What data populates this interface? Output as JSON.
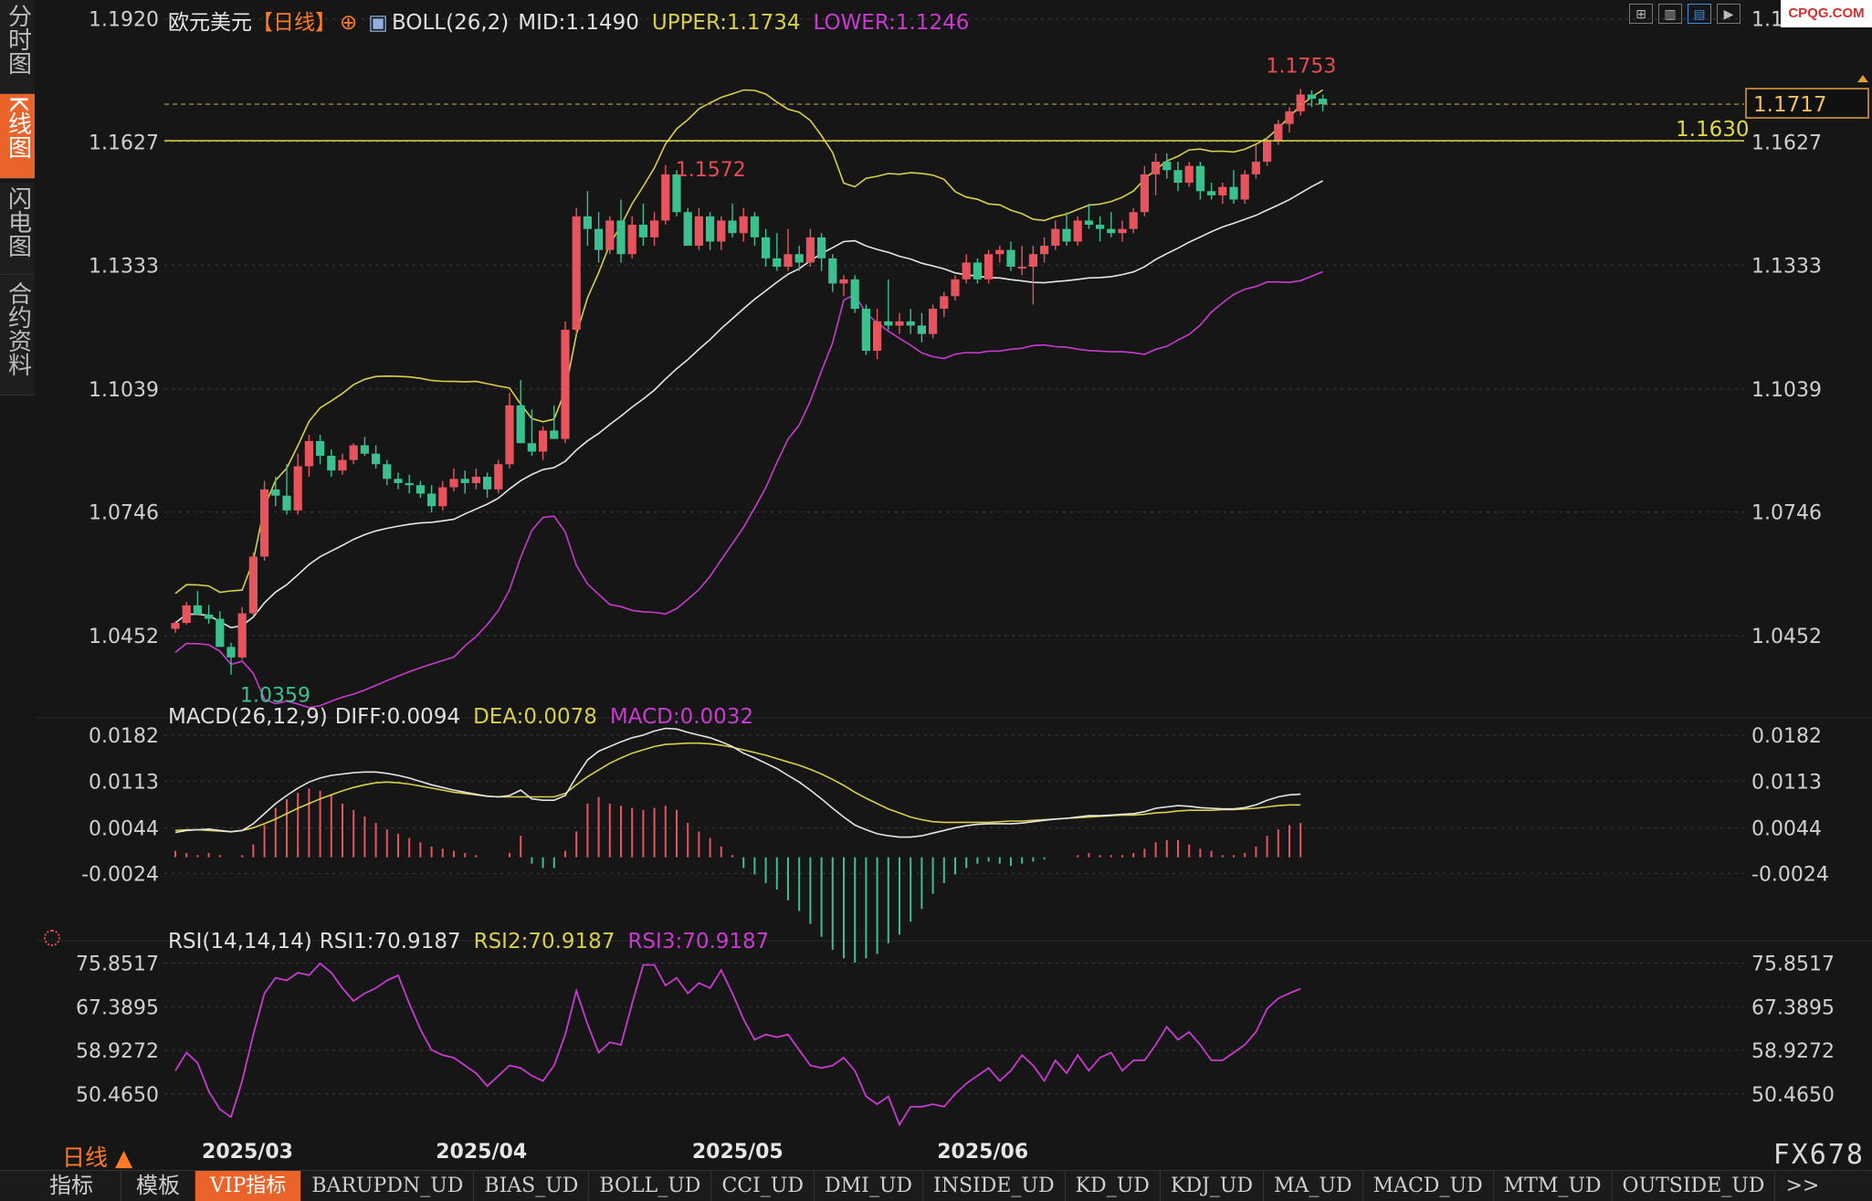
{
  "left_tabs": [
    {
      "label": "分时图",
      "active": false
    },
    {
      "label": "K线图",
      "active": true
    },
    {
      "label": "闪电图",
      "active": false
    },
    {
      "label": "合约资料",
      "active": false
    }
  ],
  "header": {
    "symbol": "欧元美元",
    "period_tag": "【日线】",
    "boll_label": "BOLL(26,2)",
    "mid": "MID:1.1490",
    "upper": "UPPER:1.1734",
    "lower": "LOWER:1.1246"
  },
  "macd_header": {
    "label": "MACD(26,12,9)",
    "diff": "DIFF:0.0094",
    "dea": "DEA:0.0078",
    "macd": "MACD:0.0032"
  },
  "rsi_header": {
    "label": "RSI(14,14,14)",
    "rsi1": "RSI1:70.9187",
    "rsi2": "RSI2:70.9187",
    "rsi3": "RSI3:70.9187"
  },
  "watermark": "CPQG.COM",
  "top_icons": [
    "grid-icon",
    "candle-view-icon",
    "chart-mode-icon",
    "forward-icon"
  ],
  "period_label": "日线",
  "brand": "FX678",
  "bottom_tabs": [
    {
      "label": "指标",
      "active": false,
      "cn": true
    },
    {
      "label": "模板",
      "active": false,
      "cn": true
    },
    {
      "label": "VIP指标",
      "active": true,
      "cn": false
    },
    {
      "label": "BARUPDN_UD",
      "active": false,
      "cn": false
    },
    {
      "label": "BIAS_UD",
      "active": false,
      "cn": false
    },
    {
      "label": "BOLL_UD",
      "active": false,
      "cn": false
    },
    {
      "label": "CCI_UD",
      "active": false,
      "cn": false
    },
    {
      "label": "DMI_UD",
      "active": false,
      "cn": false
    },
    {
      "label": "INSIDE_UD",
      "active": false,
      "cn": false
    },
    {
      "label": "KD_UD",
      "active": false,
      "cn": false
    },
    {
      "label": "KDJ_UD",
      "active": false,
      "cn": false
    },
    {
      "label": "MA_UD",
      "active": false,
      "cn": false
    },
    {
      "label": "MACD_UD",
      "active": false,
      "cn": false
    },
    {
      "label": "MTM_UD",
      "active": false,
      "cn": false
    },
    {
      "label": "OUTSIDE_UD",
      "active": false,
      "cn": false
    },
    {
      "label": ">>",
      "active": false,
      "cn": false
    }
  ],
  "colors": {
    "up": "#e8545e",
    "down": "#3cc08f",
    "mid": "#e6e6e6",
    "upper": "#d8d04a",
    "lower": "#c93bd0",
    "level": "#e0d94a",
    "accent": "#e9632a"
  },
  "chart_data": [
    {
      "type": "candlestick",
      "x_ticks": [
        "2025/03",
        "2025/04",
        "2025/05",
        "2025/06"
      ],
      "y_ticks": [
        "1.1920",
        "1.1627",
        "1.1333",
        "1.1039",
        "1.0746",
        "1.0452"
      ],
      "ylim": [
        1.028,
        1.1965
      ],
      "candles": [
        [
          1.0468,
          1.0486,
          1.0458,
          1.0482
        ],
        [
          1.0482,
          1.0532,
          1.0478,
          1.0524
        ],
        [
          1.0524,
          1.0558,
          1.0512,
          1.0502
        ],
        [
          1.0502,
          1.0525,
          1.048,
          1.0492
        ],
        [
          1.0492,
          1.051,
          1.044,
          1.0425
        ],
        [
          1.0425,
          1.0435,
          1.0359,
          1.04
        ],
        [
          1.04,
          1.052,
          1.0395,
          1.0505
        ],
        [
          1.0505,
          1.065,
          1.05,
          1.064
        ],
        [
          1.064,
          1.082,
          1.063,
          1.08
        ],
        [
          1.08,
          1.083,
          1.076,
          1.0785
        ],
        [
          1.0785,
          1.086,
          1.074,
          1.075
        ],
        [
          1.075,
          1.0885,
          1.074,
          1.0855
        ],
        [
          1.0855,
          1.093,
          1.083,
          1.0915
        ],
        [
          1.0915,
          1.093,
          1.086,
          1.088
        ],
        [
          1.088,
          1.0895,
          1.083,
          1.0845
        ],
        [
          1.0845,
          1.0885,
          1.0835,
          1.087
        ],
        [
          1.087,
          1.091,
          1.086,
          1.0905
        ],
        [
          1.0905,
          1.0925,
          1.088,
          1.0885
        ],
        [
          1.0885,
          1.0905,
          1.085,
          1.086
        ],
        [
          1.086,
          1.087,
          1.081,
          1.0825
        ],
        [
          1.0825,
          1.084,
          1.08,
          1.0815
        ],
        [
          1.0815,
          1.0835,
          1.079,
          1.081
        ],
        [
          1.081,
          1.082,
          1.078,
          1.079
        ],
        [
          1.079,
          1.081,
          1.0745,
          1.076
        ],
        [
          1.076,
          1.082,
          1.075,
          1.0805
        ],
        [
          1.0805,
          1.085,
          1.0795,
          1.0825
        ],
        [
          1.0825,
          1.0845,
          1.079,
          1.0815
        ],
        [
          1.0815,
          1.085,
          1.08,
          1.083
        ],
        [
          1.083,
          1.084,
          1.078,
          1.08
        ],
        [
          1.08,
          1.087,
          1.079,
          1.086
        ],
        [
          1.086,
          1.103,
          1.085,
          1.1
        ],
        [
          1.1,
          1.106,
          1.091,
          1.091
        ],
        [
          1.091,
          1.099,
          1.088,
          1.089
        ],
        [
          1.089,
          1.095,
          1.087,
          1.094
        ],
        [
          1.094,
          1.1,
          1.092,
          1.092
        ],
        [
          1.092,
          1.12,
          1.091,
          1.118
        ],
        [
          1.118,
          1.147,
          1.117,
          1.145
        ],
        [
          1.145,
          1.151,
          1.138,
          1.142
        ],
        [
          1.142,
          1.146,
          1.134,
          1.137
        ],
        [
          1.137,
          1.145,
          1.136,
          1.144
        ],
        [
          1.144,
          1.149,
          1.134,
          1.136
        ],
        [
          1.136,
          1.145,
          1.135,
          1.143
        ],
        [
          1.143,
          1.148,
          1.138,
          1.14
        ],
        [
          1.14,
          1.146,
          1.138,
          1.144
        ],
        [
          1.144,
          1.1572,
          1.143,
          1.155
        ],
        [
          1.155,
          1.156,
          1.145,
          1.146
        ],
        [
          1.146,
          1.147,
          1.138,
          1.138
        ],
        [
          1.138,
          1.147,
          1.137,
          1.145
        ],
        [
          1.145,
          1.146,
          1.137,
          1.139
        ],
        [
          1.139,
          1.145,
          1.137,
          1.144
        ],
        [
          1.144,
          1.148,
          1.14,
          1.141
        ],
        [
          1.141,
          1.147,
          1.139,
          1.145
        ],
        [
          1.145,
          1.146,
          1.138,
          1.14
        ],
        [
          1.14,
          1.142,
          1.133,
          1.135
        ],
        [
          1.135,
          1.141,
          1.132,
          1.133
        ],
        [
          1.133,
          1.142,
          1.132,
          1.136
        ],
        [
          1.136,
          1.138,
          1.132,
          1.134
        ],
        [
          1.134,
          1.142,
          1.133,
          1.14
        ],
        [
          1.14,
          1.141,
          1.132,
          1.135
        ],
        [
          1.135,
          1.136,
          1.127,
          1.129
        ],
        [
          1.129,
          1.131,
          1.126,
          1.13
        ],
        [
          1.13,
          1.131,
          1.122,
          1.123
        ],
        [
          1.123,
          1.124,
          1.112,
          1.113
        ],
        [
          1.113,
          1.123,
          1.111,
          1.12
        ],
        [
          1.12,
          1.13,
          1.118,
          1.119
        ],
        [
          1.119,
          1.122,
          1.117,
          1.12
        ],
        [
          1.12,
          1.123,
          1.117,
          1.119
        ],
        [
          1.119,
          1.122,
          1.115,
          1.117
        ],
        [
          1.117,
          1.124,
          1.116,
          1.123
        ],
        [
          1.123,
          1.127,
          1.121,
          1.126
        ],
        [
          1.126,
          1.131,
          1.125,
          1.13
        ],
        [
          1.13,
          1.136,
          1.129,
          1.134
        ],
        [
          1.134,
          1.135,
          1.129,
          1.13
        ],
        [
          1.13,
          1.137,
          1.129,
          1.136
        ],
        [
          1.136,
          1.138,
          1.134,
          1.137
        ],
        [
          1.137,
          1.139,
          1.132,
          1.133
        ],
        [
          1.133,
          1.138,
          1.131,
          1.133
        ],
        [
          1.133,
          1.138,
          1.124,
          1.136
        ],
        [
          1.136,
          1.14,
          1.134,
          1.138
        ],
        [
          1.138,
          1.144,
          1.137,
          1.142
        ],
        [
          1.142,
          1.146,
          1.138,
          1.139
        ],
        [
          1.139,
          1.145,
          1.138,
          1.144
        ],
        [
          1.144,
          1.148,
          1.142,
          1.143
        ],
        [
          1.143,
          1.145,
          1.139,
          1.142
        ],
        [
          1.142,
          1.146,
          1.14,
          1.141
        ],
        [
          1.141,
          1.144,
          1.139,
          1.142
        ],
        [
          1.142,
          1.147,
          1.141,
          1.146
        ],
        [
          1.146,
          1.157,
          1.145,
          1.155
        ],
        [
          1.155,
          1.16,
          1.15,
          1.158
        ],
        [
          1.158,
          1.16,
          1.154,
          1.156
        ],
        [
          1.156,
          1.158,
          1.151,
          1.153
        ],
        [
          1.153,
          1.158,
          1.152,
          1.157
        ],
        [
          1.157,
          1.158,
          1.149,
          1.151
        ],
        [
          1.151,
          1.153,
          1.149,
          1.15
        ],
        [
          1.15,
          1.153,
          1.148,
          1.152
        ],
        [
          1.152,
          1.156,
          1.148,
          1.149
        ],
        [
          1.149,
          1.156,
          1.148,
          1.155
        ],
        [
          1.155,
          1.162,
          1.154,
          1.158
        ],
        [
          1.158,
          1.164,
          1.157,
          1.163
        ],
        [
          1.163,
          1.168,
          1.162,
          1.167
        ],
        [
          1.167,
          1.171,
          1.165,
          1.17
        ],
        [
          1.17,
          1.1753,
          1.169,
          1.174
        ],
        [
          1.174,
          1.175,
          1.171,
          1.173
        ],
        [
          1.173,
          1.174,
          1.17,
          1.1717
        ]
      ],
      "annotations": [
        {
          "text": "1.1753",
          "color": "#e84a52"
        },
        {
          "text": "1.1572",
          "color": "#e84a52"
        },
        {
          "text": "1.0359",
          "color": "#3cc08f"
        }
      ],
      "level_label": "1.1630",
      "level_value": 1.163,
      "current_label": "1.1717",
      "current_value": 1.1717
    },
    {
      "type": "line",
      "title": "MACD(26,12,9)",
      "y_ticks": [
        "0.0182",
        "0.0113",
        "0.0044",
        "-0.0024"
      ],
      "ylim": [
        -0.0097,
        0.0209
      ],
      "diff": [
        0.0037,
        0.004,
        0.0041,
        0.0042,
        0.004,
        0.0038,
        0.004,
        0.005,
        0.0065,
        0.008,
        0.0092,
        0.0103,
        0.0112,
        0.0118,
        0.0122,
        0.0124,
        0.0126,
        0.0127,
        0.0127,
        0.0125,
        0.0122,
        0.0118,
        0.0113,
        0.0108,
        0.0104,
        0.01,
        0.0097,
        0.0094,
        0.0091,
        0.009,
        0.0092,
        0.01,
        0.0087,
        0.0085,
        0.0085,
        0.0092,
        0.012,
        0.0145,
        0.0158,
        0.0165,
        0.0172,
        0.0178,
        0.0182,
        0.0188,
        0.0192,
        0.0191,
        0.0186,
        0.0182,
        0.0178,
        0.0172,
        0.0165,
        0.0155,
        0.0148,
        0.014,
        0.0132,
        0.0122,
        0.0112,
        0.01,
        0.0087,
        0.0073,
        0.006,
        0.0048,
        0.0041,
        0.0035,
        0.0032,
        0.003,
        0.003,
        0.0032,
        0.0036,
        0.004,
        0.0044,
        0.0047,
        0.0049,
        0.005,
        0.005,
        0.005,
        0.0051,
        0.0053,
        0.0055,
        0.0057,
        0.0058,
        0.006,
        0.0062,
        0.0062,
        0.0063,
        0.0064,
        0.0065,
        0.0068,
        0.0073,
        0.0075,
        0.0077,
        0.0076,
        0.0074,
        0.0073,
        0.0072,
        0.0072,
        0.0074,
        0.0078,
        0.0085,
        0.009,
        0.0093,
        0.0094
      ],
      "dea": [
        0.004,
        0.0041,
        0.0041,
        0.004,
        0.0039,
        0.0038,
        0.004,
        0.0044,
        0.005,
        0.0057,
        0.0065,
        0.0073,
        0.008,
        0.0087,
        0.0093,
        0.0099,
        0.0104,
        0.0108,
        0.0111,
        0.0112,
        0.0111,
        0.0109,
        0.0106,
        0.0103,
        0.01,
        0.0097,
        0.0095,
        0.0093,
        0.0091,
        0.009,
        0.009,
        0.009,
        0.009,
        0.009,
        0.009,
        0.0095,
        0.0108,
        0.012,
        0.013,
        0.014,
        0.0148,
        0.0155,
        0.016,
        0.0165,
        0.0168,
        0.0169,
        0.017,
        0.017,
        0.0169,
        0.0167,
        0.0164,
        0.016,
        0.0156,
        0.0152,
        0.0147,
        0.0142,
        0.0137,
        0.0131,
        0.0124,
        0.0116,
        0.0107,
        0.0097,
        0.0088,
        0.008,
        0.0072,
        0.0066,
        0.006,
        0.0056,
        0.0053,
        0.0052,
        0.0052,
        0.0052,
        0.0052,
        0.0052,
        0.0053,
        0.0054,
        0.0054,
        0.0055,
        0.0056,
        0.0057,
        0.0058,
        0.0059,
        0.006,
        0.0061,
        0.0062,
        0.0063,
        0.0063,
        0.0064,
        0.0066,
        0.0067,
        0.0069,
        0.007,
        0.007,
        0.007,
        0.0071,
        0.0071,
        0.0072,
        0.0073,
        0.0075,
        0.0077,
        0.0078,
        0.0078
      ],
      "macd": [
        0.0003,
        0.0002,
        0.0001,
        0.0002,
        0.0001,
        0.0,
        0.0001,
        0.0006,
        0.0015,
        0.0023,
        0.0027,
        0.003,
        0.0032,
        0.0031,
        0.0029,
        0.0025,
        0.0022,
        0.0019,
        0.0016,
        0.0013,
        0.0011,
        0.0009,
        0.0007,
        0.0005,
        0.0004,
        0.0003,
        0.0002,
        0.0001,
        0.0,
        0.0,
        0.0002,
        0.001,
        -0.0003,
        -0.0005,
        -0.0005,
        0.0003,
        0.0012,
        0.0025,
        0.0028,
        0.0025,
        0.0024,
        0.0023,
        0.0022,
        0.0023,
        0.0024,
        0.0022,
        0.0016,
        0.0012,
        0.0009,
        0.0005,
        0.0001,
        -0.0005,
        -0.0008,
        -0.0012,
        -0.0015,
        -0.002,
        -0.0025,
        -0.0031,
        -0.0037,
        -0.0043,
        -0.0047,
        -0.0049,
        -0.0047,
        -0.0045,
        -0.004,
        -0.0036,
        -0.003,
        -0.0024,
        -0.0017,
        -0.0012,
        -0.0008,
        -0.0005,
        -0.0003,
        -0.0002,
        -0.0003,
        -0.0004,
        -0.0003,
        -0.0002,
        -0.0001,
        0.0,
        0.0,
        0.0001,
        0.0002,
        0.0001,
        0.0001,
        0.0001,
        0.0002,
        0.0004,
        0.0007,
        0.0008,
        0.0008,
        0.0006,
        0.0004,
        0.0003,
        0.0001,
        0.0001,
        0.0002,
        0.0005,
        0.001,
        0.0013,
        0.0015,
        0.0016
      ]
    },
    {
      "type": "line",
      "title": "RSI(14,14,14)",
      "y_ticks": [
        "75.8517",
        "67.3895",
        "58.9272",
        "50.4650"
      ],
      "ylim": [
        43.0,
        80.2
      ],
      "rsi": [
        55.0,
        58.5,
        56.5,
        51.0,
        47.5,
        46.0,
        53.0,
        62.0,
        70.0,
        73.0,
        72.5,
        74.0,
        73.5,
        75.8,
        74.0,
        71.0,
        68.5,
        70.0,
        71.0,
        72.5,
        73.5,
        68.0,
        63.0,
        59.0,
        58.0,
        57.5,
        56.0,
        54.5,
        52.0,
        54.0,
        56.0,
        55.5,
        54.0,
        53.0,
        56.0,
        62.0,
        70.5,
        64.0,
        58.5,
        60.5,
        60.0,
        68.0,
        75.5,
        75.5,
        71.5,
        73.0,
        70.0,
        72.0,
        71.0,
        74.5,
        70.0,
        65.0,
        61.0,
        62.0,
        61.5,
        62.0,
        59.0,
        56.0,
        55.5,
        56.0,
        57.5,
        55.0,
        50.0,
        48.5,
        50.0,
        44.5,
        48.0,
        48.0,
        48.5,
        48.0,
        50.5,
        52.5,
        54.0,
        55.5,
        53.0,
        55.0,
        58.0,
        56.0,
        53.0,
        57.0,
        54.5,
        58.0,
        55.0,
        57.5,
        58.5,
        55.0,
        57.0,
        57.0,
        60.0,
        63.5,
        61.0,
        62.5,
        60.0,
        57.0,
        57.0,
        58.5,
        60.0,
        62.5,
        67.0,
        69.0,
        70.0,
        70.9
      ]
    }
  ]
}
